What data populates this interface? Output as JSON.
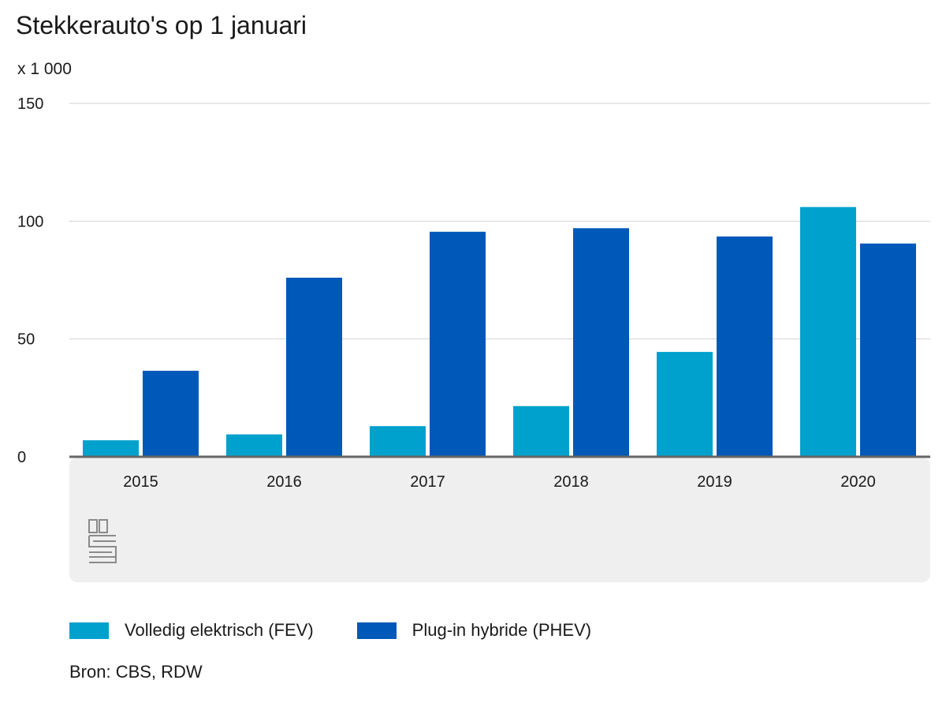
{
  "title": "Stekkerauto's op 1 januari",
  "unit_label": "x 1 000",
  "source": "Bron: CBS, RDW",
  "logo": "cbs-logo",
  "colors": {
    "fev": "#00a1cd",
    "phev": "#0058b8",
    "gridline": "#d2d2d2",
    "baseline": "#666666",
    "panel": "#efefef"
  },
  "chart_data": {
    "type": "bar",
    "categories": [
      "2015",
      "2016",
      "2017",
      "2018",
      "2019",
      "2020"
    ],
    "series": [
      {
        "name": "Volledig elektrisch (FEV)",
        "values": [
          7,
          9.5,
          13,
          21.5,
          44.5,
          106
        ]
      },
      {
        "name": "Plug-in hybride (PHEV)",
        "values": [
          36.5,
          76,
          95.5,
          97,
          93.5,
          90.5
        ]
      }
    ],
    "ylim": [
      0,
      150
    ],
    "yticks": [
      "0",
      "50",
      "100",
      "150"
    ],
    "grid": true,
    "legend_position": "bottom"
  }
}
